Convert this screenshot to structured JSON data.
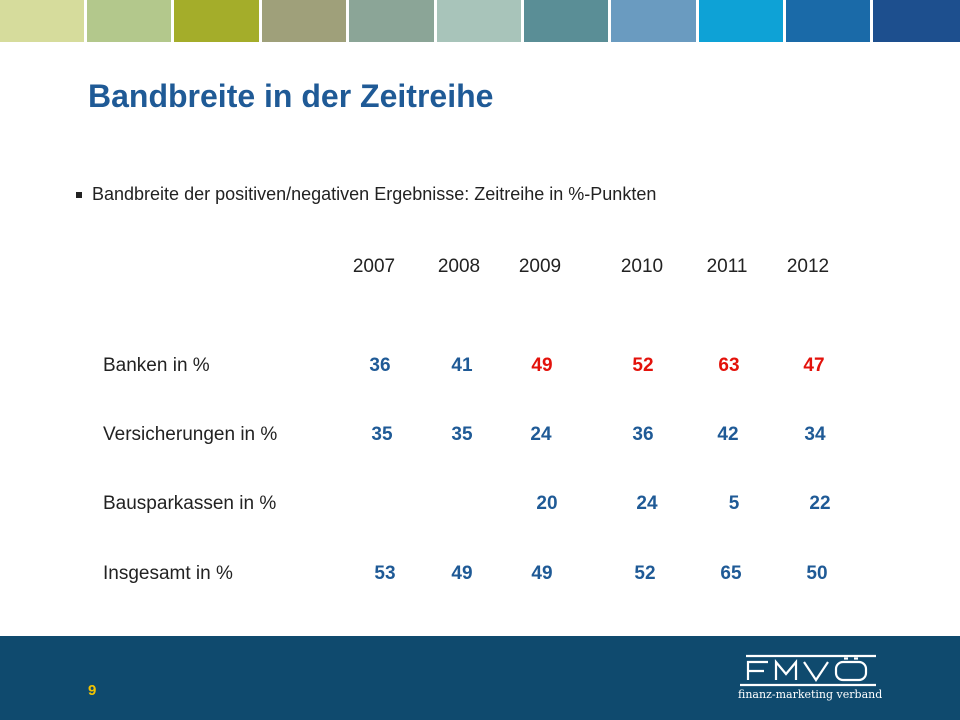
{
  "header": {
    "swatch_colors": [
      "#d6dc9c",
      "#b3c88c",
      "#a4ad2a",
      "#9fa07a",
      "#8ba597",
      "#a8c4ba",
      "#5a8e96",
      "#6a9bc0",
      "#0ea2d6",
      "#1a6aa8",
      "#1d4f8e"
    ]
  },
  "slide": {
    "title": "Bandbreite in der Zeitreihe",
    "bullet": "Bandbreite der positiven/negativen Ergebnisse: Zeitreihe in %-Punkten",
    "title_color": "#1f5a96"
  },
  "table": {
    "years": [
      "2007",
      "2008",
      "2009",
      "2010",
      "2011",
      "2012"
    ],
    "rows": [
      {
        "label": "Banken in %",
        "values": [
          "36",
          "41",
          "49",
          "52",
          "63",
          "47"
        ],
        "colors": [
          "#1f5a96",
          "#1f5a96",
          "#e3120b",
          "#e3120b",
          "#e3120b",
          "#e3120b"
        ]
      },
      {
        "label": "Versicherungen in %",
        "values": [
          "35",
          "35",
          "24",
          "36",
          "42",
          "34"
        ],
        "colors": [
          "#1f5a96",
          "#1f5a96",
          "#1f5a96",
          "#1f5a96",
          "#1f5a96",
          "#1f5a96"
        ]
      },
      {
        "label": "Bausparkassen in %",
        "values": [
          "",
          "",
          "20",
          "24",
          "5",
          "22"
        ],
        "colors": [
          "#1f5a96",
          "#1f5a96",
          "#1f5a96",
          "#1f5a96",
          "#1f5a96",
          "#1f5a96"
        ]
      },
      {
        "label": "Insgesamt in %",
        "values": [
          "53",
          "49",
          "49",
          "52",
          "65",
          "50"
        ],
        "colors": [
          "#1f5a96",
          "#1f5a96",
          "#1f5a96",
          "#1f5a96",
          "#1f5a96",
          "#1f5a96"
        ]
      }
    ]
  },
  "footer": {
    "page_number": "9",
    "logo_name": "FMVÖ",
    "logo_subtitle": "finanz-marketing verband",
    "background": "#0f4a6e",
    "page_number_color": "#f2c300"
  }
}
